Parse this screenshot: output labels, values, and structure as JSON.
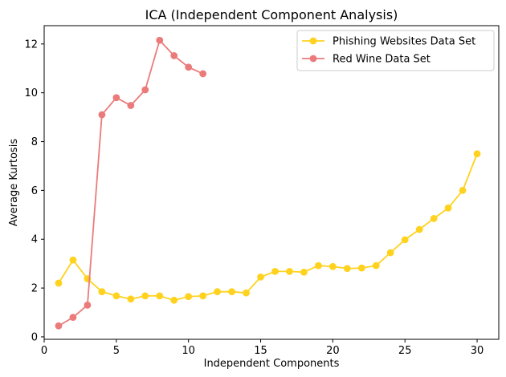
{
  "chart_data": {
    "type": "line",
    "title": "ICA (Independent Component Analysis)",
    "xlabel": "Independent Components",
    "ylabel": "Average Kurtosis",
    "xlim": [
      0,
      31.5
    ],
    "ylim": [
      -0.1,
      12.75
    ],
    "xticks": [
      0,
      5,
      10,
      15,
      20,
      25,
      30
    ],
    "yticks": [
      0,
      2,
      4,
      6,
      8,
      10,
      12
    ],
    "grid": false,
    "legend_position": "top-right",
    "series": [
      {
        "name": "Phishing Websites Data Set",
        "color": "#FFD21F",
        "marker": "circle",
        "x": [
          1,
          2,
          3,
          4,
          5,
          6,
          7,
          8,
          9,
          10,
          11,
          12,
          13,
          14,
          15,
          16,
          17,
          18,
          19,
          20,
          21,
          22,
          23,
          24,
          25,
          26,
          27,
          28,
          29,
          30
        ],
        "y": [
          2.2,
          3.15,
          2.38,
          1.85,
          1.68,
          1.55,
          1.68,
          1.68,
          1.5,
          1.65,
          1.68,
          1.85,
          1.85,
          1.8,
          2.45,
          2.68,
          2.68,
          2.65,
          2.92,
          2.88,
          2.8,
          2.82,
          2.92,
          3.45,
          3.98,
          4.4,
          4.85,
          5.28,
          6.0,
          7.5
        ]
      },
      {
        "name": "Red Wine Data Set",
        "color": "#EB7B7B",
        "marker": "circle",
        "x": [
          1,
          2,
          3,
          4,
          5,
          6,
          7,
          8,
          9,
          10,
          11
        ],
        "y": [
          0.45,
          0.8,
          1.3,
          9.1,
          9.8,
          9.48,
          10.12,
          12.15,
          11.52,
          11.05,
          10.78
        ]
      }
    ]
  }
}
